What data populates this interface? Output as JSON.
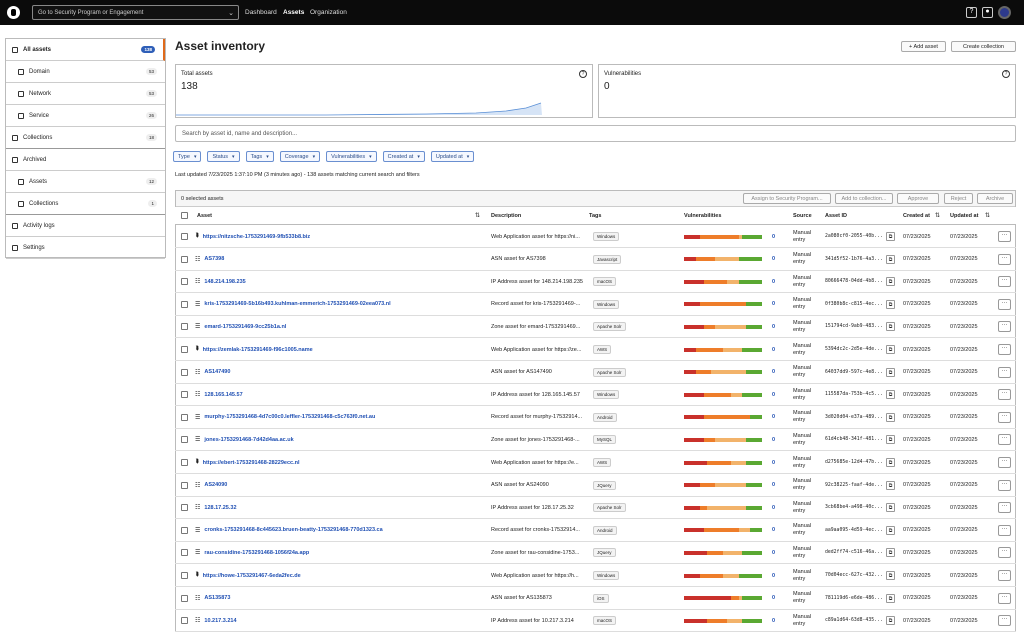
{
  "nav": {
    "search": "Go to Security Program or Engagement",
    "links": [
      "Dashboard",
      "Assets",
      "Organization"
    ]
  },
  "sidebar": {
    "items": [
      {
        "label": "All assets",
        "count": 138
      },
      {
        "label": "Domain",
        "count": 53
      },
      {
        "label": "Network",
        "count": 53
      },
      {
        "label": "Service",
        "count": 26
      },
      {
        "label": "Collections",
        "count": 18
      },
      {
        "label": "Archived"
      },
      {
        "label": "Assets",
        "count": 12
      },
      {
        "label": "Collections",
        "count": 1
      },
      {
        "label": "Activity logs"
      },
      {
        "label": "Settings"
      }
    ]
  },
  "header": {
    "title": "Asset inventory",
    "buttons": [
      "+ Add asset",
      "Create collection"
    ]
  },
  "cards": [
    {
      "label": "Total assets",
      "value": 138
    },
    {
      "label": "Vulnerabilities",
      "value": 0
    }
  ],
  "search": "Search by asset id, name and description...",
  "filters": [
    "Type",
    "Status",
    "Tags",
    "Coverage",
    "Vulnerabilities",
    "Created at",
    "Updated at"
  ],
  "status": "Last updated 7/23/2025 1:37:10 PM (3 minutes ago) - 138 assets matching current search and filters",
  "toolbar": {
    "selected": "0 selected assets",
    "actions": [
      "Assign to Security Program...",
      "Add to collection...",
      "Approve",
      "Reject",
      "Archive"
    ]
  },
  "table": {
    "columns": [
      "Asset",
      "Description",
      "Tags",
      "Vulnerabilities",
      "Source",
      "Asset ID",
      "Created at",
      "Updated at"
    ],
    "rows": [
      {
        "asset": "https://nitzsche-1753291469-9fb533b8.biz",
        "description": "Web Application asset for https://ni...",
        "tag": "Windows",
        "severity": [
          20,
          50,
          5,
          25
        ],
        "vulnerabilities": 0,
        "source": "Manual entry",
        "asset_id": "2a080cf0-2055-40b...",
        "created_at": "07/23/2025",
        "updated_at": "07/23/2025"
      },
      {
        "asset": "AS7398",
        "description": "ASN asset for AS7398",
        "tag": "Javascript",
        "severity": [
          15,
          25,
          30,
          30
        ],
        "vulnerabilities": 0,
        "source": "Manual entry",
        "asset_id": "341d5f52-1b76-4a3...",
        "created_at": "07/23/2025",
        "updated_at": "07/23/2025"
      },
      {
        "asset": "148.214.198.235",
        "description": "IP Address asset for 148.214.198.235",
        "tag": "macOS",
        "severity": [
          25,
          30,
          15,
          30
        ],
        "vulnerabilities": 0,
        "source": "Manual entry",
        "asset_id": "80666478-04dd-4b8...",
        "created_at": "07/23/2025",
        "updated_at": "07/23/2025"
      },
      {
        "asset": "kris-1753291469-5b16b493.kuhlman-emmerich-1753291469-02eea073.nl",
        "description": "Record asset for kris-1753291469-...",
        "tag": "Windows",
        "severity": [
          20,
          60,
          0,
          20
        ],
        "vulnerabilities": 0,
        "source": "Manual entry",
        "asset_id": "0f380b8c-c815-4ec...",
        "created_at": "07/23/2025",
        "updated_at": "07/23/2025"
      },
      {
        "asset": "emard-1753291469-9cc25b1a.nl",
        "description": "Zone asset for emard-1753291469...",
        "tag": "Apache Solr",
        "severity": [
          25,
          15,
          40,
          20
        ],
        "vulnerabilities": 0,
        "source": "Manual entry",
        "asset_id": "151794cd-9ab9-483...",
        "created_at": "07/23/2025",
        "updated_at": "07/23/2025"
      },
      {
        "asset": "https://zemlak-1753291469-f96c1005.name",
        "description": "Web Application asset for https://ze...",
        "tag": "AWS",
        "severity": [
          15,
          35,
          25,
          25
        ],
        "vulnerabilities": 0,
        "source": "Manual entry",
        "asset_id": "5394dc2c-2d5e-4de...",
        "created_at": "07/23/2025",
        "updated_at": "07/23/2025"
      },
      {
        "asset": "AS147490",
        "description": "ASN asset for AS147490",
        "tag": "Apache Solr",
        "severity": [
          15,
          20,
          45,
          20
        ],
        "vulnerabilities": 0,
        "source": "Manual entry",
        "asset_id": "64037dd9-597c-4e8...",
        "created_at": "07/23/2025",
        "updated_at": "07/23/2025"
      },
      {
        "asset": "128.165.145.57",
        "description": "IP Address asset for 128.165.145.57",
        "tag": "Windows",
        "severity": [
          25,
          35,
          15,
          25
        ],
        "vulnerabilities": 0,
        "source": "Manual entry",
        "asset_id": "115587da-753b-4c5...",
        "created_at": "07/23/2025",
        "updated_at": "07/23/2025"
      },
      {
        "asset": "murphy-1753291468-4d7c00c0.leffler-1753291468-c5c763f0.net.au",
        "description": "Record asset for murphy-17532914...",
        "tag": "Android",
        "severity": [
          25,
          60,
          0,
          15
        ],
        "vulnerabilities": 0,
        "source": "Manual entry",
        "asset_id": "3d020d04-e37a-489...",
        "created_at": "07/23/2025",
        "updated_at": "07/23/2025"
      },
      {
        "asset": "jones-1753291468-7d42d4aa.ac.uk",
        "description": "Zone asset for jones-1753291468-...",
        "tag": "MySQL",
        "severity": [
          25,
          15,
          40,
          20
        ],
        "vulnerabilities": 0,
        "source": "Manual entry",
        "asset_id": "61d4cb48-341f-481...",
        "created_at": "07/23/2025",
        "updated_at": "07/23/2025"
      },
      {
        "asset": "https://ebert-1753291468-28229ecc.nl",
        "description": "Web Application asset for https://e...",
        "tag": "AWS",
        "severity": [
          30,
          30,
          20,
          20
        ],
        "vulnerabilities": 0,
        "source": "Manual entry",
        "asset_id": "d275685e-12d4-47b...",
        "created_at": "07/23/2025",
        "updated_at": "07/23/2025"
      },
      {
        "asset": "AS24090",
        "description": "ASN asset for AS24090",
        "tag": "JQuery",
        "severity": [
          20,
          20,
          40,
          20
        ],
        "vulnerabilities": 0,
        "source": "Manual entry",
        "asset_id": "92c38225-faaf-4de...",
        "created_at": "07/23/2025",
        "updated_at": "07/23/2025"
      },
      {
        "asset": "128.17.25.32",
        "description": "IP Address asset for 128.17.25.32",
        "tag": "Apache Solr",
        "severity": [
          20,
          10,
          50,
          20
        ],
        "vulnerabilities": 0,
        "source": "Manual entry",
        "asset_id": "3cb68be4-a498-40c...",
        "created_at": "07/23/2025",
        "updated_at": "07/23/2025"
      },
      {
        "asset": "cronks-1753291468-8c445623.bruen-beatty-1753291468-770d1323.ca",
        "description": "Record asset for cronks-17532914...",
        "tag": "Android",
        "severity": [
          25,
          45,
          15,
          15
        ],
        "vulnerabilities": 0,
        "source": "Manual entry",
        "asset_id": "aa9aa095-4d59-4ec...",
        "created_at": "07/23/2025",
        "updated_at": "07/23/2025"
      },
      {
        "asset": "rau-considine-1753291468-1056f24a.app",
        "description": "Zone asset for rau-considine-1753...",
        "tag": "JQuery",
        "severity": [
          30,
          20,
          25,
          25
        ],
        "vulnerabilities": 0,
        "source": "Manual entry",
        "asset_id": "ded2ff74-c516-46a...",
        "created_at": "07/23/2025",
        "updated_at": "07/23/2025"
      },
      {
        "asset": "https://howe-1753291467-6eda2fec.de",
        "description": "Web Application asset for https://h...",
        "tag": "Windows",
        "severity": [
          20,
          30,
          20,
          30
        ],
        "vulnerabilities": 0,
        "source": "Manual entry",
        "asset_id": "70d04ecc-627c-432...",
        "created_at": "07/23/2025",
        "updated_at": "07/23/2025"
      },
      {
        "asset": "AS135873",
        "description": "ASN asset for AS135873",
        "tag": "iOS",
        "severity": [
          60,
          10,
          5,
          25
        ],
        "vulnerabilities": 0,
        "source": "Manual entry",
        "asset_id": "781119d6-e6de-486...",
        "created_at": "07/23/2025",
        "updated_at": "07/23/2025"
      },
      {
        "asset": "10.217.3.214",
        "description": "IP Address asset for 10.217.3.214",
        "tag": "macOS",
        "severity": [
          30,
          25,
          20,
          25
        ],
        "vulnerabilities": 0,
        "source": "Manual entry",
        "asset_id": "c89a1d64-63d8-435...",
        "created_at": "07/23/2025",
        "updated_at": "07/23/2025"
      }
    ]
  }
}
